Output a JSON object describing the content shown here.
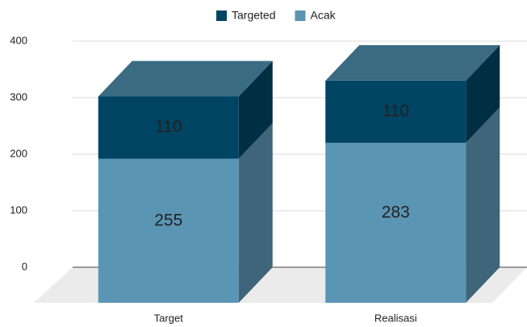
{
  "chart_data": {
    "type": "bar3d_stacked",
    "categories": [
      "Target",
      "Realisasi"
    ],
    "series": [
      {
        "name": "Acak",
        "color": "#5b95b4",
        "values": [
          255,
          283
        ]
      },
      {
        "name": "Targeted",
        "color": "#004463",
        "values": [
          110,
          110
        ]
      }
    ],
    "ylim": [
      0,
      400
    ],
    "yticks": [
      0,
      100,
      200,
      300,
      400
    ],
    "grid": true,
    "legend": "top"
  }
}
